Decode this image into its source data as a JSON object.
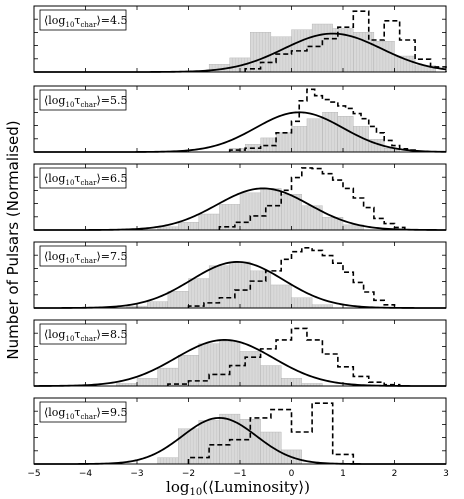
{
  "ylabel": "Number of Pulsars (Normalised)",
  "xlabel": {
    "pre": "log",
    "sub": "10",
    "post": "(⟨Luminosity⟩)"
  },
  "panel_label": {
    "pre": "⟨log",
    "sub": "10",
    "mid": "τ",
    "sub2": "char",
    "post": "⟩"
  },
  "chart_data": {
    "type": "histogram",
    "xlim": [
      -5,
      3
    ],
    "xticks": [
      -5,
      -4,
      -3,
      -2,
      -1,
      0,
      1,
      2,
      3
    ],
    "xtick_labels": [
      "−5",
      "−4",
      "−3",
      "−2",
      "−1",
      "0",
      "1",
      "2",
      "3"
    ],
    "grid": false,
    "legend": "none",
    "colors": {
      "histogram_fill": "#d9d9d9",
      "histogram_edge": "#9a9a9a",
      "fit_curve": "#000000",
      "observed": "#000000"
    },
    "series_styles": {
      "histogram": "filled grey bars",
      "fit": "solid line",
      "observed": "dashed step"
    },
    "panels": [
      {
        "label_value": "4.5",
        "ylim": [
          0,
          1.0
        ],
        "histogram": {
          "bins": [
            [
              -1.6,
              -1.2,
              0.12
            ],
            [
              -1.2,
              -0.8,
              0.22
            ],
            [
              -0.8,
              -0.4,
              0.62
            ],
            [
              -0.4,
              0,
              0.55
            ],
            [
              0,
              0.4,
              0.66
            ],
            [
              0.4,
              0.8,
              0.75
            ],
            [
              0.8,
              1.2,
              0.68
            ],
            [
              1.2,
              1.6,
              0.62
            ],
            [
              1.6,
              2.0,
              0.48
            ],
            [
              2.0,
              2.4,
              0.25
            ],
            [
              2.4,
              2.8,
              0.1
            ]
          ]
        },
        "fit": {
          "mu": 0.8,
          "sigma": 0.95,
          "peak": 0.6
        },
        "observed": {
          "edges": [
            -0.9,
            -0.6,
            -0.3,
            0.0,
            0.3,
            0.6,
            0.9,
            1.2,
            1.5,
            1.8,
            2.1,
            2.4,
            2.7,
            3.0
          ],
          "heights": [
            0.05,
            0.15,
            0.28,
            0.33,
            0.4,
            0.52,
            0.7,
            0.95,
            0.5,
            0.8,
            0.5,
            0.2,
            0.08
          ]
        }
      },
      {
        "label_value": "5.5",
        "ylim": [
          0,
          1.0
        ],
        "histogram": {
          "bins": [
            [
              -1.2,
              -0.9,
              0.06
            ],
            [
              -0.9,
              -0.6,
              0.12
            ],
            [
              -0.6,
              -0.3,
              0.22
            ],
            [
              -0.3,
              0,
              0.3
            ],
            [
              0,
              0.3,
              0.4
            ],
            [
              0.3,
              0.6,
              0.52
            ],
            [
              0.6,
              0.9,
              0.62
            ],
            [
              0.9,
              1.2,
              0.56
            ],
            [
              1.2,
              1.5,
              0.4
            ],
            [
              1.5,
              1.8,
              0.2
            ],
            [
              1.8,
              2.1,
              0.06
            ]
          ]
        },
        "fit": {
          "mu": 0.15,
          "sigma": 0.85,
          "peak": 0.62
        },
        "observed": {
          "edges": [
            -1.2,
            -0.9,
            -0.6,
            -0.3,
            0.0,
            0.15,
            0.3,
            0.45,
            0.6,
            0.75,
            0.9,
            1.05,
            1.2,
            1.35,
            1.5,
            1.65,
            1.8,
            1.95,
            2.1,
            2.25,
            2.4
          ],
          "heights": [
            0.03,
            0.06,
            0.1,
            0.3,
            0.48,
            0.8,
            0.98,
            0.88,
            0.82,
            0.78,
            0.72,
            0.68,
            0.6,
            0.52,
            0.4,
            0.3,
            0.18,
            0.1,
            0.05,
            0.03
          ]
        }
      },
      {
        "label_value": "6.5",
        "ylim": [
          0,
          1.0
        ],
        "histogram": {
          "bins": [
            [
              -2.6,
              -2.2,
              0.05
            ],
            [
              -2.2,
              -1.8,
              0.12
            ],
            [
              -1.8,
              -1.4,
              0.25
            ],
            [
              -1.4,
              -1.0,
              0.4
            ],
            [
              -1.0,
              -0.6,
              0.58
            ],
            [
              -0.6,
              -0.2,
              0.65
            ],
            [
              -0.2,
              0.2,
              0.56
            ],
            [
              0.2,
              0.6,
              0.38
            ],
            [
              0.6,
              1.0,
              0.2
            ],
            [
              1.0,
              1.4,
              0.08
            ]
          ]
        },
        "fit": {
          "mu": -0.55,
          "sigma": 0.9,
          "peak": 0.65
        },
        "observed": {
          "edges": [
            -1.4,
            -1.1,
            -0.8,
            -0.5,
            -0.2,
            0.0,
            0.2,
            0.4,
            0.6,
            0.8,
            1.0,
            1.2,
            1.4,
            1.6,
            1.8,
            2.0,
            2.2
          ],
          "heights": [
            0.05,
            0.12,
            0.22,
            0.38,
            0.62,
            0.82,
            0.97,
            0.96,
            0.88,
            0.78,
            0.65,
            0.5,
            0.35,
            0.18,
            0.1,
            0.04
          ]
        }
      },
      {
        "label_value": "7.5",
        "ylim": [
          0,
          1.0
        ],
        "histogram": {
          "bins": [
            [
              -3.2,
              -2.8,
              0.03
            ],
            [
              -2.8,
              -2.4,
              0.1
            ],
            [
              -2.4,
              -2.0,
              0.26
            ],
            [
              -2.0,
              -1.6,
              0.46
            ],
            [
              -1.6,
              -1.2,
              0.66
            ],
            [
              -1.2,
              -0.8,
              0.72
            ],
            [
              -0.8,
              -0.4,
              0.58
            ],
            [
              -0.4,
              0,
              0.36
            ],
            [
              0,
              0.4,
              0.16
            ],
            [
              0.4,
              0.8,
              0.05
            ]
          ]
        },
        "fit": {
          "mu": -1.05,
          "sigma": 0.9,
          "peak": 0.72
        },
        "observed": {
          "edges": [
            -2.0,
            -1.7,
            -1.4,
            -1.1,
            -0.8,
            -0.5,
            -0.2,
            0.0,
            0.2,
            0.4,
            0.6,
            0.8,
            1.0,
            1.2,
            1.4,
            1.6,
            1.8,
            2.0
          ],
          "heights": [
            0.03,
            0.08,
            0.16,
            0.28,
            0.42,
            0.58,
            0.76,
            0.88,
            0.94,
            0.9,
            0.82,
            0.7,
            0.56,
            0.4,
            0.25,
            0.12,
            0.05
          ]
        }
      },
      {
        "label_value": "8.5",
        "ylim": [
          0,
          1.0
        ],
        "histogram": {
          "bins": [
            [
              -3.4,
              -3.0,
              0.04
            ],
            [
              -3.0,
              -2.6,
              0.12
            ],
            [
              -2.6,
              -2.2,
              0.28
            ],
            [
              -2.2,
              -1.8,
              0.48
            ],
            [
              -1.8,
              -1.4,
              0.66
            ],
            [
              -1.4,
              -1.0,
              0.7
            ],
            [
              -1.0,
              -0.6,
              0.54
            ],
            [
              -0.6,
              -0.2,
              0.32
            ],
            [
              -0.2,
              0.2,
              0.12
            ],
            [
              0.2,
              0.6,
              0.04
            ]
          ]
        },
        "fit": {
          "mu": -1.3,
          "sigma": 0.95,
          "peak": 0.72
        },
        "observed": {
          "edges": [
            -2.4,
            -2.0,
            -1.6,
            -1.2,
            -0.9,
            -0.6,
            -0.3,
            0.0,
            0.3,
            0.6,
            0.9,
            1.2,
            1.5,
            1.8,
            2.1
          ],
          "heights": [
            0.03,
            0.08,
            0.18,
            0.32,
            0.45,
            0.58,
            0.72,
            0.9,
            0.72,
            0.5,
            0.3,
            0.15,
            0.06,
            0.02
          ]
        }
      },
      {
        "label_value": "9.5",
        "ylim": [
          0,
          1.0
        ],
        "histogram": {
          "bins": [
            [
              -2.6,
              -2.2,
              0.1
            ],
            [
              -2.2,
              -1.8,
              0.55
            ],
            [
              -1.8,
              -1.4,
              0.68
            ],
            [
              -1.4,
              -1.0,
              0.78
            ],
            [
              -1.0,
              -0.6,
              0.7
            ],
            [
              -0.6,
              -0.2,
              0.5
            ],
            [
              -0.2,
              0.2,
              0.22
            ]
          ]
        },
        "fit": {
          "mu": -1.4,
          "sigma": 0.72,
          "peak": 0.72
        },
        "observed": {
          "edges": [
            -2.0,
            -1.6,
            -1.2,
            -0.8,
            -0.4,
            0.0,
            0.4,
            0.8,
            1.2
          ],
          "heights": [
            0.1,
            0.3,
            0.38,
            0.72,
            0.85,
            0.5,
            0.95,
            0.15
          ]
        }
      }
    ]
  }
}
